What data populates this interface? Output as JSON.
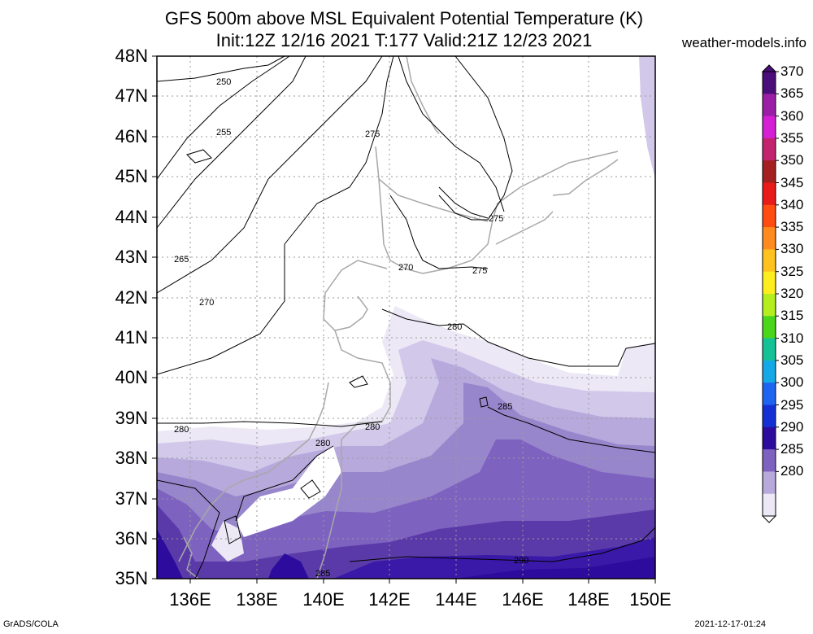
{
  "title_line1": "GFS 500m above MSL Equivalent Potential Temperature (K)",
  "title_line2": "Init:12Z 12/16 2021 T:177 Valid:21Z 12/23 2021",
  "site": "weather-models.info",
  "lat_labels": [
    "48N",
    "47N",
    "46N",
    "45N",
    "44N",
    "43N",
    "42N",
    "41N",
    "40N",
    "39N",
    "38N",
    "37N",
    "36N",
    "35N"
  ],
  "lon_labels": [
    "136E",
    "138E",
    "140E",
    "142E",
    "144E",
    "146E",
    "148E",
    "150E"
  ],
  "contour_labels": [
    "250",
    "255",
    "265",
    "270",
    "275",
    "270",
    "275",
    "280",
    "285",
    "280",
    "280",
    "290",
    "285",
    "280"
  ],
  "colorbar": {
    "labels": [
      "370",
      "365",
      "360",
      "355",
      "350",
      "345",
      "340",
      "335",
      "330",
      "325",
      "320",
      "315",
      "310",
      "305",
      "300",
      "295",
      "290",
      "285",
      "280"
    ],
    "colors": [
      "#4a0d7a",
      "#9a1fa6",
      "#d41fd4",
      "#c3236e",
      "#a41f1f",
      "#e81a1a",
      "#ff4d12",
      "#ff8a1e",
      "#ffc21e",
      "#ffee1e",
      "#b4ee1e",
      "#4ad61a",
      "#14c296",
      "#14a8e6",
      "#1f64f0",
      "#1430d4",
      "#2d0b9c",
      "#7e62c0",
      "#b7a9dc",
      "#ece8f6"
    ]
  },
  "footer_left": "GrADS/COLA",
  "footer_right": "2021-12-17-01:24"
}
